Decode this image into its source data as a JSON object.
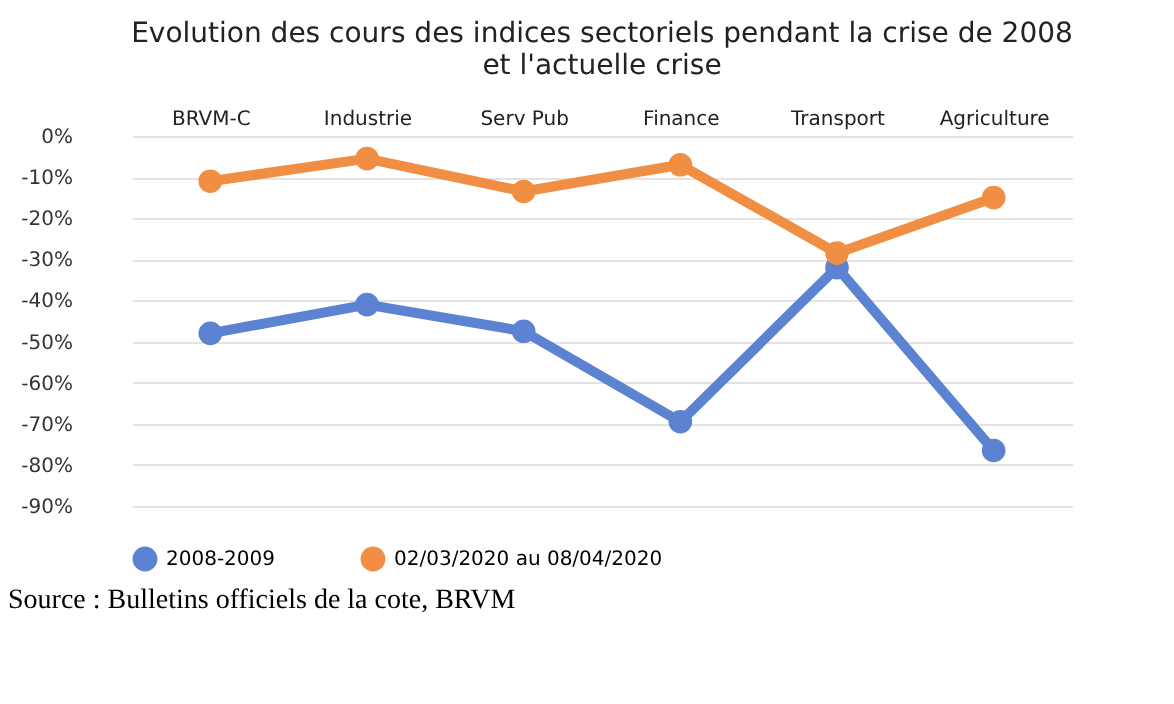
{
  "chart_data": {
    "type": "line",
    "title": "Evolution des cours des indices sectoriels pendant la crise de 2008 et l'actuelle crise",
    "categories": [
      "BRVM-C",
      "Industrie",
      "Serv Pub",
      "Finance",
      "Transport",
      "Agriculture"
    ],
    "series": [
      {
        "name": "2008-2009",
        "color": "#5b83d2",
        "values": [
          -48,
          -41,
          -47.5,
          -69.5,
          -32,
          -76.5
        ]
      },
      {
        "name": "02/03/2020 au 08/04/2020",
        "color": "#f08f43",
        "values": [
          -11,
          -5.5,
          -13.5,
          -7,
          -28.5,
          -15
        ]
      }
    ],
    "ylim": [
      -90,
      0
    ],
    "yticks": [
      {
        "value": -90,
        "label": "-90%"
      },
      {
        "value": -80,
        "label": "-80%"
      },
      {
        "value": -70,
        "label": "-70%"
      },
      {
        "value": -60,
        "label": "-60%"
      },
      {
        "value": -50,
        "label": "-50%"
      },
      {
        "value": -40,
        "label": "-40%"
      },
      {
        "value": -30,
        "label": "-30%"
      },
      {
        "value": -20,
        "label": "-20%"
      },
      {
        "value": -10,
        "label": "-10%"
      },
      {
        "value": 0,
        "label": "0%"
      }
    ],
    "grid": "y",
    "legend": "bottom",
    "marker": "circle",
    "line_style": "solid",
    "annotations": [
      "Source : Bulletins officiels de la cote, BRVM"
    ]
  }
}
